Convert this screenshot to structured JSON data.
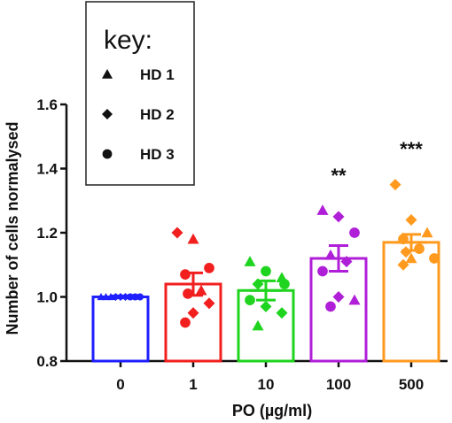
{
  "chart_data": {
    "type": "bar",
    "xlabel": "PO (µg/ml)",
    "ylabel": "Number of cells normalysed",
    "ylim": [
      0.8,
      1.6
    ],
    "yticks": [
      "0.8",
      "1.0",
      "1.2",
      "1.4",
      "1.6"
    ],
    "categories": [
      "0",
      "1",
      "10",
      "100",
      "500"
    ],
    "means": [
      1.0,
      1.04,
      1.02,
      1.12,
      1.17
    ],
    "sem": [
      0.003,
      0.035,
      0.03,
      0.04,
      0.025
    ],
    "colors": [
      "#1f1fff",
      "#f21f1f",
      "#1fd41f",
      "#b01fd8",
      "#ff9a1f"
    ],
    "significance": [
      "",
      "",
      "",
      "**",
      "***"
    ],
    "legend": {
      "title": "key:",
      "entries": [
        {
          "label": "HD 1",
          "marker": "triangle"
        },
        {
          "label": "HD 2",
          "marker": "diamond"
        },
        {
          "label": "HD 3",
          "marker": "circle"
        }
      ]
    },
    "points": [
      [
        {
          "y": 1.0,
          "m": "triangle"
        },
        {
          "y": 1.0,
          "m": "triangle"
        },
        {
          "y": 1.0,
          "m": "triangle"
        },
        {
          "y": 1.0,
          "m": "diamond"
        },
        {
          "y": 1.0,
          "m": "diamond"
        },
        {
          "y": 1.0,
          "m": "diamond"
        },
        {
          "y": 1.0,
          "m": "circle"
        },
        {
          "y": 1.0,
          "m": "circle"
        },
        {
          "y": 1.0,
          "m": "circle"
        }
      ],
      [
        {
          "y": 1.2,
          "m": "diamond"
        },
        {
          "y": 1.18,
          "m": "triangle"
        },
        {
          "y": 1.09,
          "m": "circle"
        },
        {
          "y": 1.07,
          "m": "circle"
        },
        {
          "y": 1.02,
          "m": "triangle"
        },
        {
          "y": 1.01,
          "m": "circle"
        },
        {
          "y": 0.95,
          "m": "diamond"
        },
        {
          "y": 0.98,
          "m": "diamond"
        },
        {
          "y": 0.92,
          "m": "circle"
        }
      ],
      [
        {
          "y": 1.11,
          "m": "triangle"
        },
        {
          "y": 1.08,
          "m": "circle"
        },
        {
          "y": 1.06,
          "m": "triangle"
        },
        {
          "y": 1.04,
          "m": "diamond"
        },
        {
          "y": 1.04,
          "m": "circle"
        },
        {
          "y": 0.99,
          "m": "circle"
        },
        {
          "y": 0.97,
          "m": "diamond"
        },
        {
          "y": 0.95,
          "m": "diamond"
        },
        {
          "y": 0.91,
          "m": "triangle"
        }
      ],
      [
        {
          "y": 1.27,
          "m": "triangle"
        },
        {
          "y": 1.25,
          "m": "diamond"
        },
        {
          "y": 1.2,
          "m": "circle"
        },
        {
          "y": 1.13,
          "m": "triangle"
        },
        {
          "y": 1.11,
          "m": "diamond"
        },
        {
          "y": 1.08,
          "m": "circle"
        },
        {
          "y": 1.0,
          "m": "diamond"
        },
        {
          "y": 0.99,
          "m": "triangle"
        },
        {
          "y": 0.97,
          "m": "circle"
        }
      ],
      [
        {
          "y": 1.35,
          "m": "diamond"
        },
        {
          "y": 1.24,
          "m": "diamond"
        },
        {
          "y": 1.2,
          "m": "triangle"
        },
        {
          "y": 1.18,
          "m": "circle"
        },
        {
          "y": 1.15,
          "m": "circle"
        },
        {
          "y": 1.14,
          "m": "diamond"
        },
        {
          "y": 1.12,
          "m": "triangle"
        },
        {
          "y": 1.12,
          "m": "circle"
        },
        {
          "y": 1.1,
          "m": "diamond"
        }
      ]
    ]
  }
}
